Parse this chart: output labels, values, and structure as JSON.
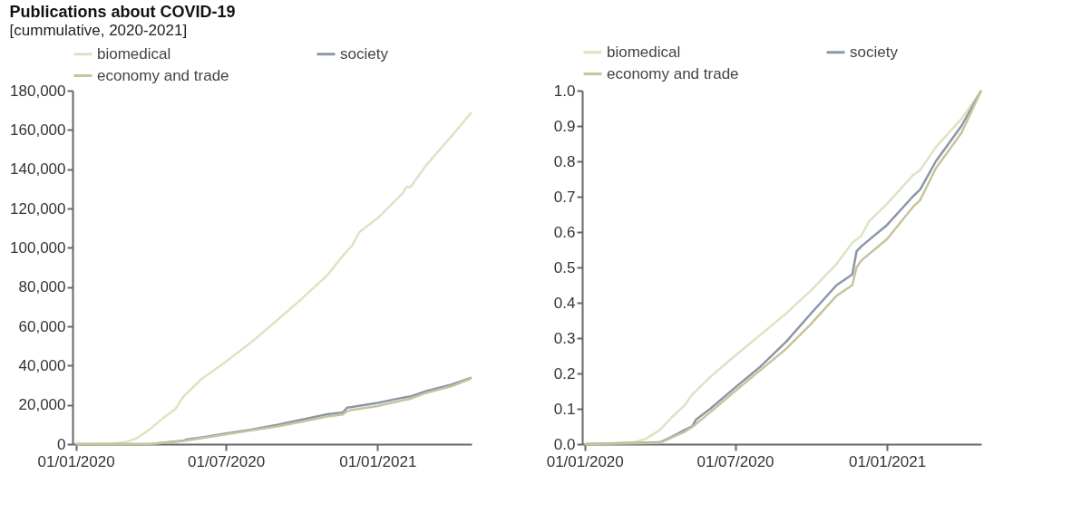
{
  "chart_data": [
    {
      "type": "line",
      "title": "Publications about COVID-19",
      "subtitle": "[cummulative, 2020-2021]",
      "legend": "top",
      "grid": false,
      "xlim": [
        "2019-12-28",
        "2021-04-25"
      ],
      "xticks": [
        {
          "value": "2020-01-01",
          "label": "01/01/2020"
        },
        {
          "value": "2020-07-01",
          "label": "01/07/2020"
        },
        {
          "value": "2021-01-01",
          "label": "01/01/2021"
        }
      ],
      "ylim": [
        0,
        180000
      ],
      "yticks": [
        {
          "value": 0,
          "label": "0"
        },
        {
          "value": 20000,
          "label": "20,000"
        },
        {
          "value": 40000,
          "label": "40,000"
        },
        {
          "value": 60000,
          "label": "60,000"
        },
        {
          "value": 80000,
          "label": "80,000"
        },
        {
          "value": 100000,
          "label": "100,000"
        },
        {
          "value": 120000,
          "label": "120,000"
        },
        {
          "value": 140000,
          "label": "140,000"
        },
        {
          "value": 160000,
          "label": "160,000"
        },
        {
          "value": 180000,
          "label": "180,000"
        }
      ],
      "series": [
        {
          "name": "biomedical",
          "color": "#dfe2c4",
          "x": [
            "2020-01-01",
            "2020-02-15",
            "2020-03-01",
            "2020-03-15",
            "2020-04-01",
            "2020-04-15",
            "2020-05-01",
            "2020-05-10",
            "2020-06-01",
            "2020-07-01",
            "2020-08-01",
            "2020-09-01",
            "2020-10-01",
            "2020-11-01",
            "2020-11-20",
            "2020-12-01",
            "2020-12-10",
            "2021-01-01",
            "2021-02-01",
            "2021-02-05",
            "2021-02-10",
            "2021-03-01",
            "2021-04-01",
            "2021-04-25"
          ],
          "values": [
            0,
            300,
            1000,
            3000,
            8000,
            13000,
            18000,
            24000,
            33000,
            42000,
            52000,
            63000,
            74000,
            86000,
            96000,
            101000,
            108000,
            115000,
            128000,
            131000,
            131000,
            142000,
            157000,
            169000
          ]
        },
        {
          "name": "society",
          "color": "#8a97a8",
          "x": [
            "2020-01-01",
            "2020-04-01",
            "2020-04-15",
            "2020-05-01",
            "2020-05-10",
            "2020-05-15",
            "2020-06-01",
            "2020-07-01",
            "2020-08-01",
            "2020-09-01",
            "2020-10-01",
            "2020-11-01",
            "2020-11-20",
            "2020-11-25",
            "2020-12-01",
            "2021-01-01",
            "2021-02-01",
            "2021-02-10",
            "2021-03-01",
            "2021-04-01",
            "2021-04-25"
          ],
          "values": [
            0,
            170,
            680,
            1350,
            1700,
            2400,
            3400,
            5400,
            7400,
            9800,
            12500,
            15200,
            16200,
            18600,
            18900,
            21000,
            23700,
            24300,
            27000,
            30400,
            33800
          ]
        },
        {
          "name": "economy and trade",
          "color": "#c7c49c",
          "x": [
            "2020-01-01",
            "2020-04-01",
            "2020-04-15",
            "2020-05-01",
            "2020-05-10",
            "2020-06-01",
            "2020-07-01",
            "2020-08-01",
            "2020-09-01",
            "2020-10-01",
            "2020-11-01",
            "2020-11-20",
            "2020-11-25",
            "2020-12-01",
            "2021-01-01",
            "2021-02-01",
            "2021-02-10",
            "2021-03-01",
            "2021-04-01",
            "2021-04-25"
          ],
          "values": [
            0,
            100,
            600,
            1200,
            1600,
            3000,
            5000,
            7000,
            9000,
            11400,
            14100,
            15100,
            16800,
            17400,
            19400,
            22400,
            23100,
            26100,
            29500,
            33500
          ]
        }
      ]
    },
    {
      "type": "line",
      "legend": "top",
      "grid": false,
      "xlim": [
        "2019-12-29",
        "2021-04-25"
      ],
      "xticks": [
        {
          "value": "2020-01-01",
          "label": "01/01/2020"
        },
        {
          "value": "2020-07-01",
          "label": "01/07/2020"
        },
        {
          "value": "2021-01-01",
          "label": "01/01/2021"
        }
      ],
      "ylim": [
        0,
        1
      ],
      "yticks": [
        {
          "value": 0,
          "label": "0.0"
        },
        {
          "value": 0.1,
          "label": "0.1"
        },
        {
          "value": 0.2,
          "label": "0.2"
        },
        {
          "value": 0.3,
          "label": "0.3"
        },
        {
          "value": 0.4,
          "label": "0.4"
        },
        {
          "value": 0.5,
          "label": "0.5"
        },
        {
          "value": 0.6,
          "label": "0.6"
        },
        {
          "value": 0.7,
          "label": "0.7"
        },
        {
          "value": 0.8,
          "label": "0.8"
        },
        {
          "value": 0.9,
          "label": "0.9"
        },
        {
          "value": 1,
          "label": "1.0"
        }
      ],
      "series": [
        {
          "name": "biomedical",
          "color": "#dfe2c4",
          "x": [
            "2020-01-01",
            "2020-03-01",
            "2020-03-15",
            "2020-04-01",
            "2020-04-15",
            "2020-05-01",
            "2020-05-10",
            "2020-06-01",
            "2020-07-01",
            "2020-08-01",
            "2020-09-01",
            "2020-10-01",
            "2020-11-01",
            "2020-11-20",
            "2020-12-01",
            "2020-12-10",
            "2021-01-01",
            "2021-02-01",
            "2021-02-10",
            "2021-03-01",
            "2021-04-01",
            "2021-04-25"
          ],
          "values": [
            0,
            0.005,
            0.015,
            0.04,
            0.075,
            0.11,
            0.14,
            0.19,
            0.25,
            0.31,
            0.37,
            0.435,
            0.51,
            0.57,
            0.59,
            0.63,
            0.68,
            0.76,
            0.775,
            0.84,
            0.92,
            1.0
          ]
        },
        {
          "name": "society",
          "color": "#8a97a8",
          "x": [
            "2020-01-01",
            "2020-04-01",
            "2020-04-15",
            "2020-05-01",
            "2020-05-10",
            "2020-05-15",
            "2020-06-01",
            "2020-07-01",
            "2020-08-01",
            "2020-09-01",
            "2020-10-01",
            "2020-11-01",
            "2020-11-20",
            "2020-11-25",
            "2020-12-01",
            "2021-01-01",
            "2021-02-01",
            "2021-02-10",
            "2021-03-01",
            "2021-04-01",
            "2021-04-25"
          ],
          "values": [
            0,
            0.005,
            0.02,
            0.04,
            0.05,
            0.07,
            0.1,
            0.16,
            0.22,
            0.29,
            0.37,
            0.45,
            0.48,
            0.545,
            0.56,
            0.62,
            0.7,
            0.72,
            0.8,
            0.9,
            1.0
          ]
        },
        {
          "name": "economy and trade",
          "color": "#c7c49c",
          "x": [
            "2020-01-01",
            "2020-04-01",
            "2020-04-15",
            "2020-05-01",
            "2020-05-10",
            "2020-06-01",
            "2020-07-01",
            "2020-08-01",
            "2020-09-01",
            "2020-10-01",
            "2020-11-01",
            "2020-11-20",
            "2020-11-25",
            "2020-12-01",
            "2021-01-01",
            "2021-02-01",
            "2021-02-10",
            "2021-03-01",
            "2021-04-01",
            "2021-04-25"
          ],
          "values": [
            0,
            0.003,
            0.018,
            0.035,
            0.048,
            0.09,
            0.15,
            0.21,
            0.27,
            0.34,
            0.42,
            0.45,
            0.5,
            0.52,
            0.58,
            0.67,
            0.69,
            0.78,
            0.88,
            1.0
          ]
        }
      ]
    }
  ]
}
